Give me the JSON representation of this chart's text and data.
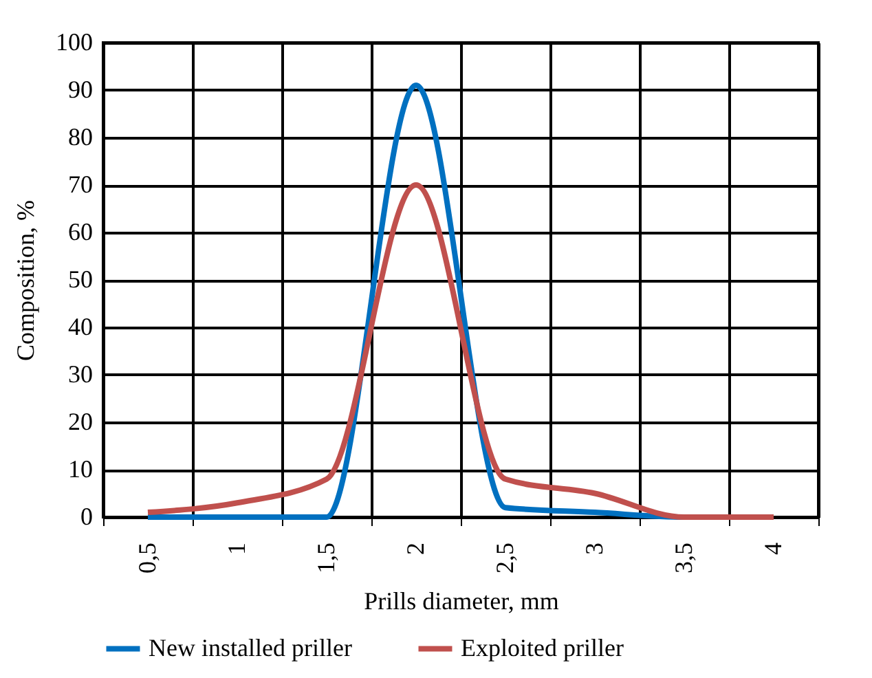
{
  "chart_data": {
    "type": "line",
    "xlabel": "Prills diameter, mm",
    "ylabel": "Composition, %",
    "categories": [
      "0,5",
      "1",
      "1,5",
      "2",
      "2,5",
      "3",
      "3,5",
      "4"
    ],
    "series": [
      {
        "name": "New installed priller",
        "color": "#0070c0",
        "values": [
          0,
          0,
          0,
          91,
          2,
          1,
          0,
          0
        ]
      },
      {
        "name": "Exploited priller",
        "color": "#c0504d",
        "values": [
          1,
          3,
          8,
          70,
          8,
          5,
          0,
          0
        ]
      }
    ],
    "ylim": [
      0,
      100
    ],
    "yticks": [
      0,
      10,
      20,
      30,
      40,
      50,
      60,
      70,
      80,
      90,
      100
    ],
    "grid": true,
    "legend": "bottom",
    "marker": "none",
    "line_style": "solid"
  }
}
